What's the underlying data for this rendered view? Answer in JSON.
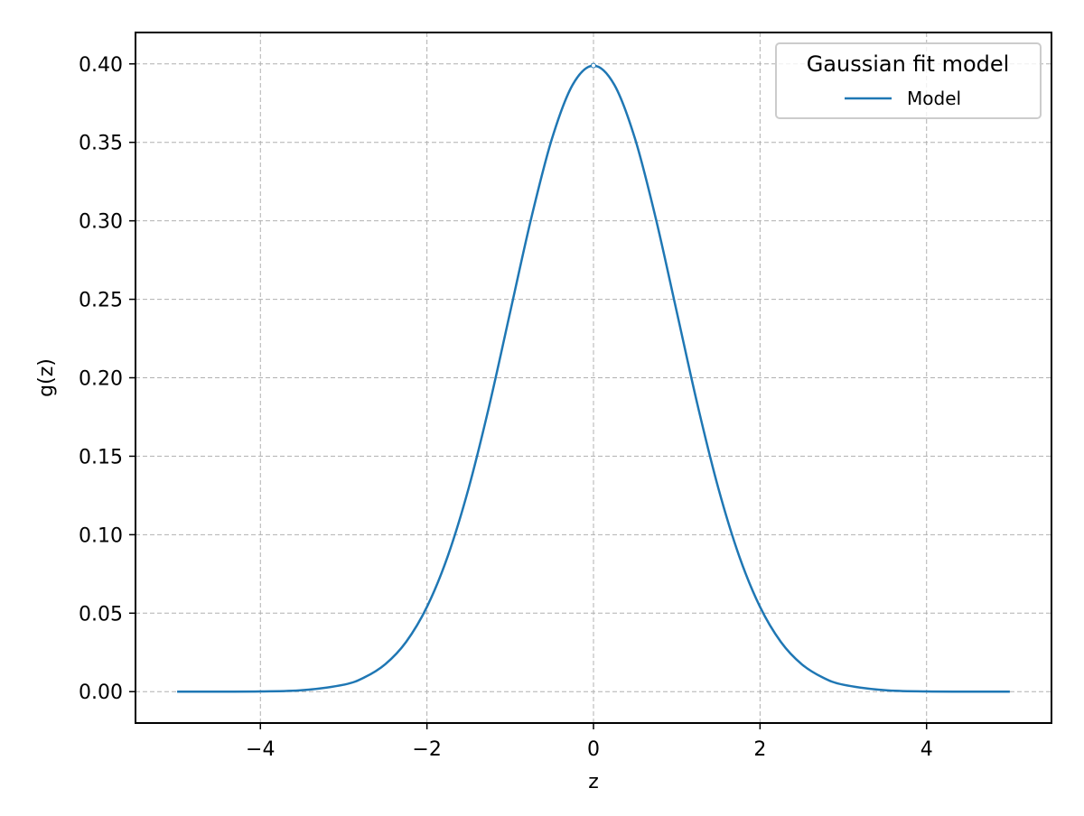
{
  "chart_data": {
    "type": "line",
    "title": "",
    "xlabel": "z",
    "ylabel": "g(z)",
    "xlim": [
      -5.5,
      5.5
    ],
    "ylim": [
      -0.02,
      0.42
    ],
    "x_ticks": [
      -4,
      -2,
      0,
      2,
      4
    ],
    "x_tick_labels": [
      "−4",
      "−2",
      "0",
      "2",
      "4"
    ],
    "y_ticks": [
      0.0,
      0.05,
      0.1,
      0.15,
      0.2,
      0.25,
      0.3,
      0.35,
      0.4
    ],
    "y_tick_labels": [
      "0.00",
      "0.05",
      "0.10",
      "0.15",
      "0.20",
      "0.25",
      "0.30",
      "0.35",
      "0.40"
    ],
    "grid": true,
    "grid_style": "dashed",
    "legend": {
      "title": "Gaussian fit model",
      "placement": "top-right"
    },
    "colors": {
      "series": "#1f77b4",
      "grid": "#b0b0b0",
      "axes": "#000000"
    },
    "series": [
      {
        "name": "Model",
        "x": [
          -5.0,
          -4.5,
          -4.0,
          -3.5,
          -3.0,
          -2.75,
          -2.5,
          -2.25,
          -2.0,
          -1.75,
          -1.5,
          -1.25,
          -1.0,
          -0.75,
          -0.5,
          -0.25,
          0.0,
          0.25,
          0.5,
          0.75,
          1.0,
          1.25,
          1.5,
          1.75,
          2.0,
          2.25,
          2.5,
          2.75,
          3.0,
          3.5,
          4.0,
          4.5,
          5.0
        ],
        "y": [
          0.0,
          0.0,
          0.0001,
          0.0009,
          0.0044,
          0.0091,
          0.0175,
          0.0317,
          0.054,
          0.0863,
          0.1295,
          0.1826,
          0.242,
          0.3011,
          0.3521,
          0.3867,
          0.3989,
          0.3867,
          0.3521,
          0.3011,
          0.242,
          0.1826,
          0.1295,
          0.0863,
          0.054,
          0.0317,
          0.0175,
          0.0091,
          0.0044,
          0.0009,
          0.0001,
          0.0,
          0.0
        ]
      }
    ]
  }
}
